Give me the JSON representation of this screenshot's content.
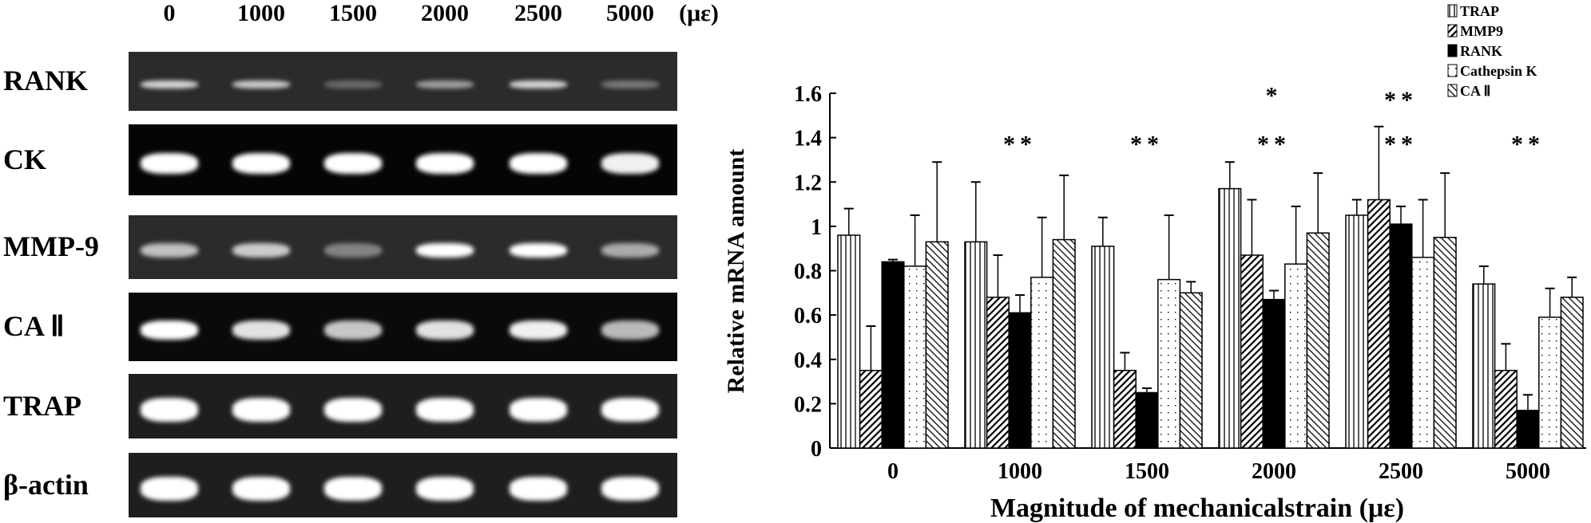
{
  "gel": {
    "lanes": [
      "0",
      "1000",
      "1500",
      "2000",
      "2500",
      "5000"
    ],
    "unit": "(με)",
    "rows": [
      {
        "label": "RANK",
        "bg": "#2b2b2b",
        "intensity": [
          0.85,
          0.8,
          0.3,
          0.6,
          0.85,
          0.4
        ]
      },
      {
        "label": "CK",
        "bg": "#050505",
        "intensity": [
          1,
          1,
          1,
          1,
          1,
          0.95
        ]
      },
      {
        "label": "MMP-9",
        "bg": "#2b2b2b",
        "intensity": [
          0.75,
          0.8,
          0.45,
          1,
          1,
          0.65
        ]
      },
      {
        "label": "CA Ⅱ",
        "bg": "#0a0a0a",
        "intensity": [
          1,
          0.9,
          0.8,
          0.9,
          0.95,
          0.75
        ]
      },
      {
        "label": "TRAP",
        "bg": "#1e1e1e",
        "intensity": [
          1,
          1,
          1,
          1,
          1,
          1
        ]
      },
      {
        "label": "β-actin",
        "bg": "#1e1e1e",
        "intensity": [
          1,
          1,
          1,
          1,
          1,
          1
        ]
      }
    ]
  },
  "chart_data": {
    "type": "bar",
    "title": "",
    "xlabel": "Magnitude of mechanicalstrain (με)",
    "ylabel": "Relative mRNA amount",
    "ylim": [
      0,
      1.6
    ],
    "yticks": [
      "0",
      "0.2",
      "0.4",
      "0.6",
      "0.8",
      "1",
      "1.2",
      "1.4",
      "1.6"
    ],
    "categories": [
      "0",
      "1000",
      "1500",
      "2000",
      "2500",
      "5000"
    ],
    "legend_position": "top-right",
    "series": [
      {
        "name": "TRAP",
        "pattern": "vertical",
        "values": [
          0.96,
          0.93,
          0.91,
          1.17,
          1.05,
          0.74
        ],
        "errors": [
          0.12,
          0.27,
          0.13,
          0.12,
          0.07,
          0.08
        ]
      },
      {
        "name": "MMP9",
        "pattern": "backslash",
        "values": [
          0.35,
          0.68,
          0.35,
          0.87,
          1.12,
          0.35
        ],
        "errors": [
          0.2,
          0.19,
          0.08,
          0.25,
          0.33,
          0.12
        ]
      },
      {
        "name": "RANK",
        "pattern": "solid",
        "values": [
          0.84,
          0.61,
          0.25,
          0.67,
          1.01,
          0.17
        ],
        "errors": [
          0.01,
          0.08,
          0.02,
          0.04,
          0.08,
          0.07
        ]
      },
      {
        "name": "Cathepsin K",
        "pattern": "dots",
        "values": [
          0.82,
          0.77,
          0.76,
          0.83,
          0.86,
          0.59
        ],
        "errors": [
          0.23,
          0.27,
          0.29,
          0.26,
          0.26,
          0.13
        ]
      },
      {
        "name": "CA Ⅱ",
        "pattern": "slash",
        "values": [
          0.93,
          0.94,
          0.7,
          0.97,
          0.95,
          0.68
        ],
        "errors": [
          0.36,
          0.29,
          0.05,
          0.27,
          0.29,
          0.09
        ]
      }
    ],
    "annotations": [
      {
        "category": "1000",
        "level": 1.4,
        "text": "**"
      },
      {
        "category": "1500",
        "level": 1.4,
        "text": "**"
      },
      {
        "category": "2000",
        "level": 1.62,
        "text": "*"
      },
      {
        "category": "2000",
        "level": 1.4,
        "text": "**"
      },
      {
        "category": "2500",
        "level": 1.6,
        "text": "**"
      },
      {
        "category": "2500",
        "level": 1.4,
        "text": "**"
      },
      {
        "category": "5000",
        "level": 1.4,
        "text": "**"
      }
    ]
  }
}
